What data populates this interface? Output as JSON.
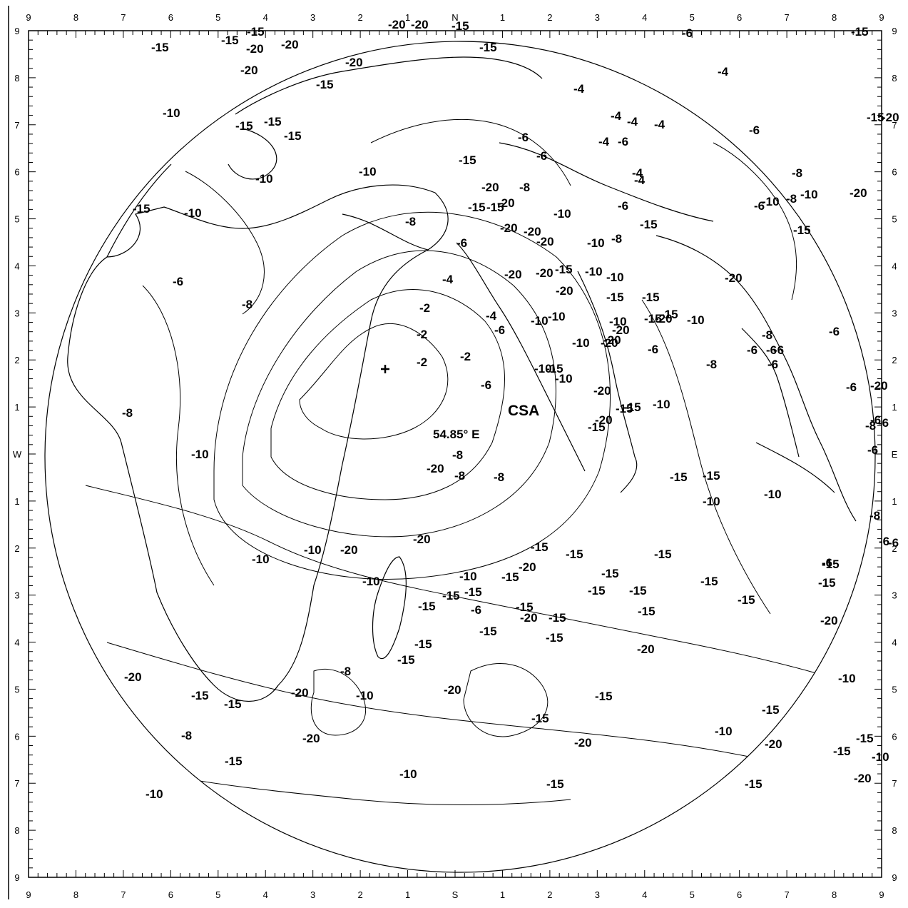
{
  "map": {
    "subsatellite_longitude": "54.85° E",
    "site_label": "CSA",
    "contour_levels": [
      "-2",
      "-4",
      "-6",
      "-8",
      "-10",
      "-15",
      "-20"
    ],
    "colors": {
      "ink": "#000000",
      "background": "#ffffff"
    }
  },
  "frame": {
    "top_ticks": [
      "9",
      "8",
      "7",
      "6",
      "5",
      "4",
      "3",
      "2",
      "1",
      "N",
      "1",
      "2",
      "3",
      "4",
      "5",
      "6",
      "7",
      "8",
      "9"
    ],
    "bottom_ticks": [
      "9",
      "8",
      "7",
      "6",
      "5",
      "4",
      "3",
      "2",
      "1",
      "S",
      "1",
      "2",
      "3",
      "4",
      "5",
      "6",
      "7",
      "8",
      "9"
    ],
    "left_ticks": [
      "9",
      "8",
      "7",
      "6",
      "5",
      "4",
      "3",
      "2",
      "1",
      "W",
      "1",
      "2",
      "3",
      "4",
      "5",
      "6",
      "7",
      "8",
      "9"
    ],
    "right_ticks": [
      "9",
      "8",
      "7",
      "6",
      "5",
      "4",
      "3",
      "2",
      "1",
      "E",
      "1",
      "2",
      "3",
      "4",
      "5",
      "6",
      "7",
      "8",
      "9"
    ]
  },
  "contour_labels": [
    "-15",
    "-15",
    "-15",
    "-20",
    "-20",
    "-20",
    "-20",
    "-20",
    "-15",
    "-15",
    "-20",
    "-15",
    "-6",
    "-15",
    "-10",
    "-15",
    "-15",
    "-15",
    "-4",
    "-4",
    "-4",
    "-4",
    "-4",
    "-4",
    "-6",
    "-6",
    "-15",
    "-6",
    "-4",
    "-4",
    "-10",
    "-10",
    "-20",
    "-8",
    "-10",
    "-8",
    "-6",
    "-10",
    "-15",
    "-15",
    "-20",
    "-20",
    "-20",
    "-15",
    "-20",
    "-10",
    "-8",
    "-6",
    "-6",
    "-8",
    "-10",
    "-15",
    "-10",
    "-15",
    "-20",
    "-20",
    "-15",
    "-20",
    "-10",
    "-10",
    "-4",
    "-20",
    "-2",
    "-2",
    "-2",
    "-2",
    "-15",
    "-15",
    "-10",
    "-15",
    "-15",
    "-20",
    "-20",
    "-4",
    "-6",
    "-10",
    "-10",
    "-10",
    "-20",
    "-20",
    "-20",
    "-10",
    "-6",
    "-8",
    "-6",
    "-8",
    "-6",
    "-6",
    "-6",
    "-6",
    "-8",
    "-6",
    "-10",
    "-15",
    "-6",
    "-20",
    "-15",
    "-20",
    "-15",
    "-10",
    "-15",
    "-10",
    "-6",
    "-8",
    "-6",
    "-6",
    "-8",
    "-8",
    "-8",
    "-20",
    "-15",
    "-15",
    "-10",
    "-10",
    "-8",
    "-6",
    "-8",
    "-6",
    "-10",
    "-8",
    "-10",
    "-10",
    "-20",
    "-10",
    "-15",
    "-20",
    "-15",
    "-15",
    "-10",
    "-15",
    "-20",
    "-15",
    "-15",
    "-15",
    "-15",
    "-15",
    "-15",
    "-6",
    "-15",
    "-15",
    "-15",
    "-15",
    "-15",
    "-20",
    "-15",
    "-15",
    "-15",
    "-15",
    "-15",
    "-6",
    "-20",
    "-20",
    "-15",
    "-15",
    "-20",
    "-8",
    "-10",
    "-8",
    "-20",
    "-15",
    "-10",
    "-10",
    "-20",
    "-15",
    "-20",
    "-15",
    "-15",
    "-20",
    "-10",
    "-15",
    "-20",
    "-15",
    "-15",
    "-10",
    "-20",
    "-15",
    "-10",
    "-20",
    "-6",
    "-6",
    "-15",
    "-20",
    "-15"
  ]
}
